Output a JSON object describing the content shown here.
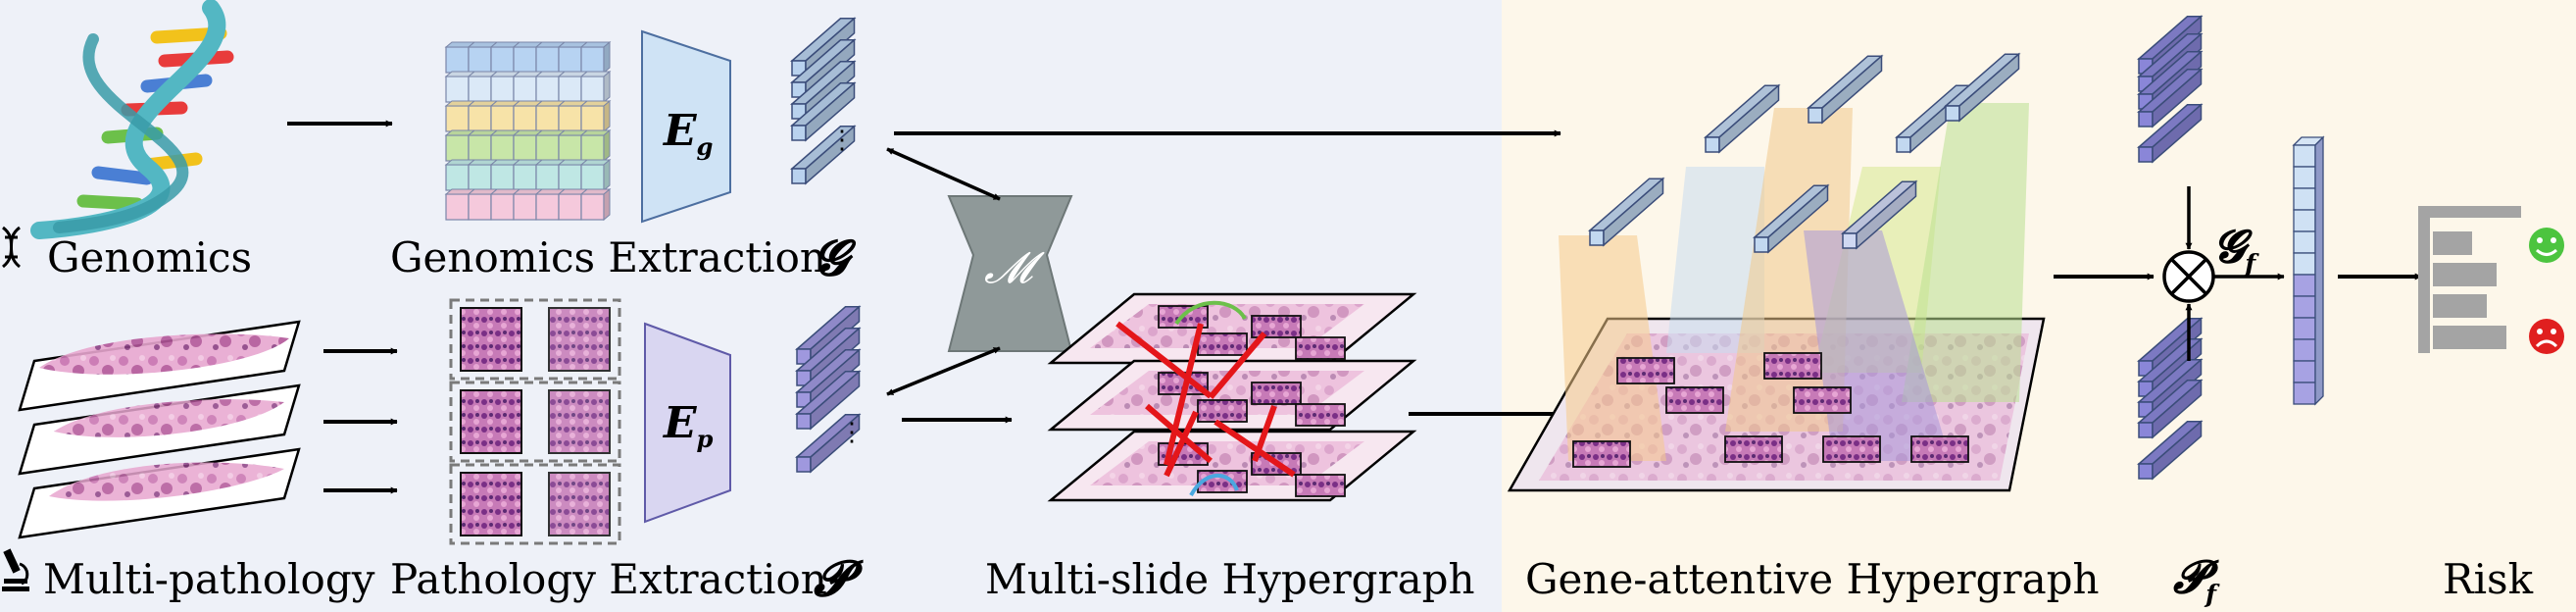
{
  "labels": {
    "genomics": "Genomics",
    "multi_pathology": "Multi-pathology",
    "genomics_extraction": "Genomics Extraction",
    "pathology_extraction": "Pathology Extraction",
    "multi_slide_hypergraph": "Multi-slide Hypergraph",
    "gene_attentive_hypergraph": "Gene-attentive Hypergraph",
    "risk": "Risk"
  },
  "symbols": {
    "genomic_encoder": "E",
    "genomic_encoder_sub": "g",
    "pathology_encoder": "E",
    "pathology_encoder_sub": "p",
    "genomic_features": "𝓖",
    "pathology_features": "𝓟",
    "fused_genomic": "𝓖",
    "fused_genomic_sub": "f",
    "fused_pathology": "𝓟",
    "fused_pathology_sub": "f",
    "mapping_module": "𝓜",
    "vertical_dots": "⋮"
  },
  "colors": {
    "left_panel_bg": "#eef1f8",
    "right_panel_bg": "#fdf7ea",
    "genomic_token": "#b9d2ee",
    "pathology_token": "#9f98de",
    "encoder_g": "#cfe3f5",
    "encoder_p": "#d9d6f1",
    "mapper": "#8f9999",
    "tissue_pink": "#d98cbf",
    "edge_red": "#e4161a",
    "happy_face": "#4cc43f",
    "sad_face": "#e01f1f"
  }
}
